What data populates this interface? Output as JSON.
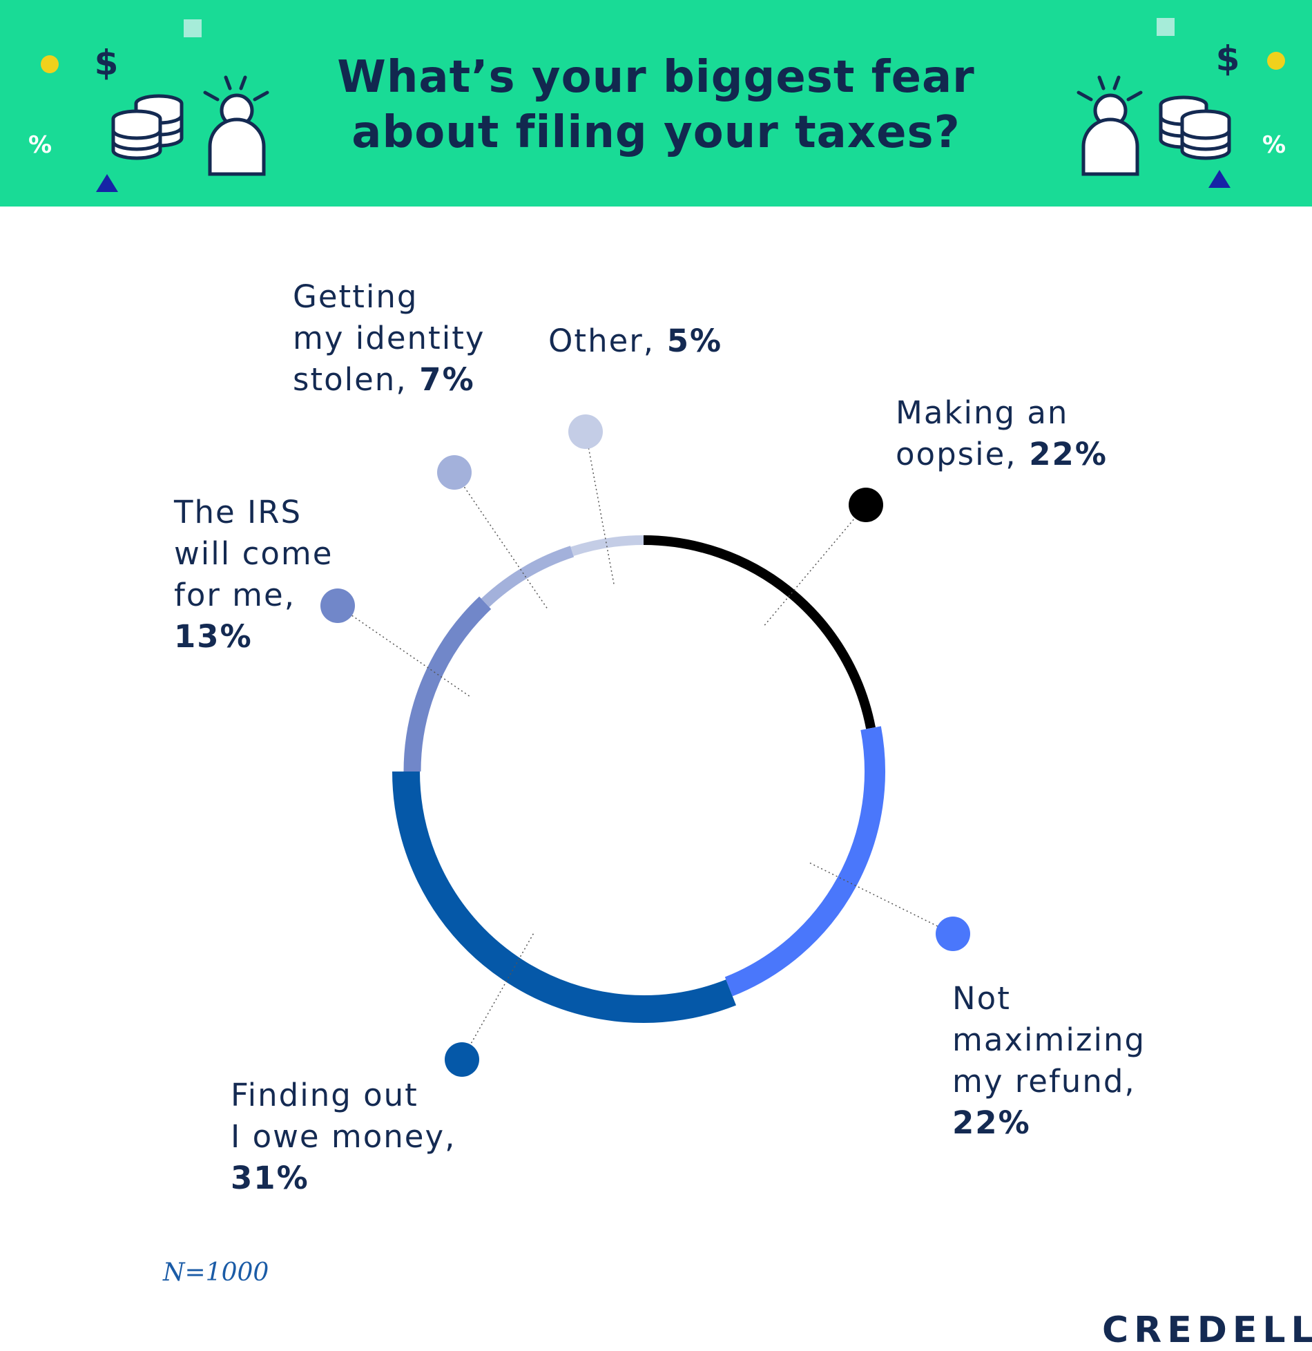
{
  "header": {
    "title_line1": "What’s your biggest fear",
    "title_line2": "about filing your taxes?",
    "background_color": "#19db96",
    "decorations": [
      "coins-stack-icon",
      "person-alert-icon",
      "dollar-icon",
      "percent-icon",
      "triangle-icon",
      "dot-icon"
    ],
    "dollar_glyph": "$",
    "percent_glyph": "%"
  },
  "chart_data": {
    "type": "pie",
    "style": "donut",
    "slices": [
      {
        "key": "oopsie",
        "lines": [
          "Making an",
          "oopsie,"
        ],
        "pct_text": "22%",
        "value": 22,
        "color": "#000000"
      },
      {
        "key": "refund",
        "lines": [
          "Not",
          "maximizing",
          "my refund,"
        ],
        "pct_text": "22%",
        "value": 22,
        "color": "#4a77fb"
      },
      {
        "key": "owe",
        "lines": [
          "Finding out",
          "I owe money,"
        ],
        "pct_text": "31%",
        "value": 31,
        "color": "#0558a8"
      },
      {
        "key": "irs",
        "lines": [
          "The IRS",
          "will come",
          "for me,"
        ],
        "pct_text": "13%",
        "value": 13,
        "color": "#7187c9"
      },
      {
        "key": "identity",
        "lines": [
          "Getting",
          "my identity",
          "stolen,"
        ],
        "pct_text": "7%",
        "value": 7,
        "color": "#a3b1db"
      },
      {
        "key": "other",
        "lines": [
          "Other,"
        ],
        "pct_text": "5%",
        "value": 5,
        "color": "#c4cde6"
      }
    ]
  },
  "footer": {
    "sample_size": "N=1000",
    "brand": "CREDELLO"
  }
}
